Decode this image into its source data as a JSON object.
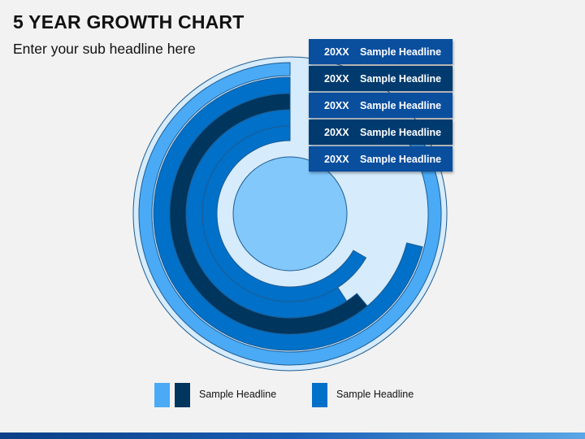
{
  "header": {
    "title": "5 YEAR GROWTH CHART",
    "subtitle": "Enter your sub headline here"
  },
  "chart_data": {
    "type": "radial-bar",
    "series": [
      {
        "label_year": "20XX",
        "label_text": "Sample Headline",
        "color": "#4aaaf5",
        "extent_deg": 302
      },
      {
        "label_year": "20XX",
        "label_text": "Sample Headline",
        "color": "#0070c8",
        "extent_deg": 256
      },
      {
        "label_year": "20XX",
        "label_text": "Sample Headline",
        "color": "#00355e",
        "extent_deg": 220
      },
      {
        "label_year": "20XX",
        "label_text": "Sample Headline",
        "color": "#0070c8",
        "extent_deg": 213
      },
      {
        "label_year": "20XX",
        "label_text": "Sample Headline",
        "color": "#0070c8",
        "extent_deg": 240
      }
    ],
    "label_colors": [
      "#0a4e9e",
      "#003a6e",
      "#0a4e9e",
      "#003a6e",
      "#0a4e9e"
    ]
  },
  "legend": [
    {
      "colors": [
        "#4aaaf5",
        "#00355e"
      ],
      "text": "Sample Headline"
    },
    {
      "colors": [
        "#0070c8"
      ],
      "text": "Sample Headline"
    }
  ],
  "colors": {
    "outer_disc": "#d6ebfb",
    "center_disc": "#82c8fb",
    "stroke": "#1e5c92"
  }
}
